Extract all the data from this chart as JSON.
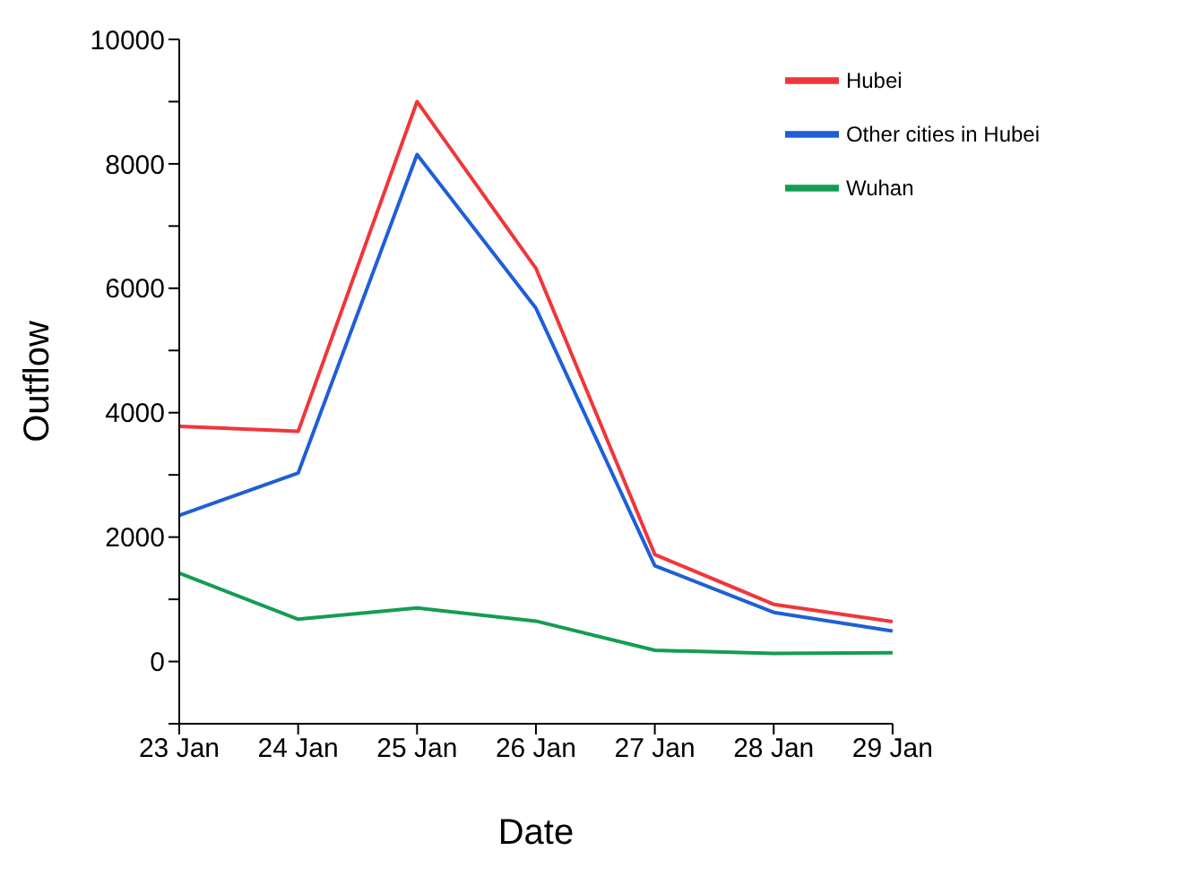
{
  "chart_data": {
    "type": "line",
    "xlabel": "Date",
    "ylabel": "Outflow",
    "categories": [
      "23 Jan",
      "24 Jan",
      "25 Jan",
      "26 Jan",
      "27 Jan",
      "28 Jan",
      "29 Jan"
    ],
    "series": [
      {
        "name": "Wuhan",
        "color": "#149c53",
        "values": [
          1420,
          680,
          860,
          650,
          180,
          130,
          140
        ]
      },
      {
        "name": "Other cities in Hubei",
        "color": "#1f5fd6",
        "values": [
          2350,
          3030,
          8150,
          5680,
          1540,
          790,
          490
        ]
      },
      {
        "name": "Hubei",
        "color": "#f0363a",
        "values": [
          3780,
          3700,
          9000,
          6320,
          1720,
          920,
          640
        ]
      }
    ],
    "ylim": [
      -1000,
      10000
    ],
    "yticks": [
      {
        "value": -1000,
        "label": null
      },
      0,
      {
        "value": 1000,
        "label": null
      },
      2000,
      {
        "value": 3000,
        "label": null
      },
      4000,
      {
        "value": 5000,
        "label": null
      },
      6000,
      {
        "value": 7000,
        "label": null
      },
      8000,
      {
        "value": 9000,
        "label": null
      },
      10000
    ],
    "grid": false,
    "legend": "top right",
    "marker": "none",
    "line_style": "solid"
  }
}
